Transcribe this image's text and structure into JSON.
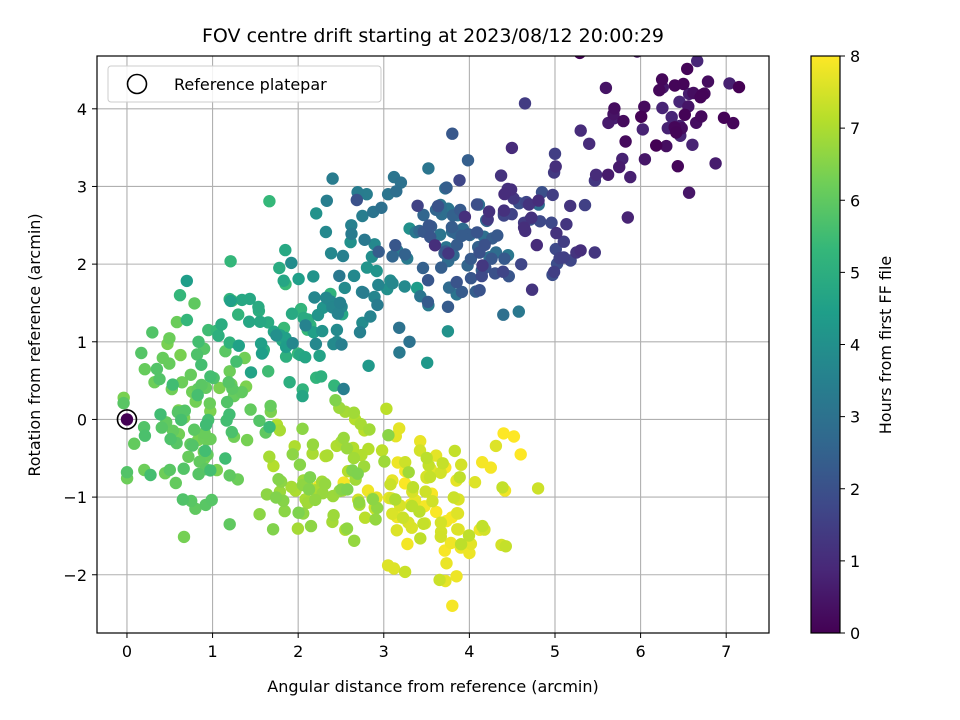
{
  "chart_data": {
    "type": "scatter",
    "title": "FOV centre drift starting at 2023/08/12 20:00:29",
    "xlabel": "Angular distance from reference (arcmin)",
    "ylabel": "Rotation from reference (arcmin)",
    "xlim": [
      -0.35,
      7.5
    ],
    "ylim": [
      -2.75,
      4.68
    ],
    "xticks": [
      0,
      1,
      2,
      3,
      4,
      5,
      6,
      7
    ],
    "yticks": [
      -2,
      -1,
      0,
      1,
      2,
      3,
      4
    ],
    "xtick_labels": [
      "0",
      "1",
      "2",
      "3",
      "4",
      "5",
      "6",
      "7"
    ],
    "ytick_labels": [
      "−2",
      "−1",
      "0",
      "1",
      "2",
      "3",
      "4"
    ],
    "grid": true,
    "legend": {
      "label": "Reference platepar",
      "placement": "upper-left"
    },
    "reference_point": {
      "x": 0,
      "y": 0
    },
    "colorbar": {
      "label": "Hours from first FF file",
      "min": 0,
      "max": 8,
      "ticks": [
        0,
        1,
        2,
        3,
        4,
        5,
        6,
        7,
        8
      ],
      "tick_labels": [
        "0",
        "1",
        "2",
        "3",
        "4",
        "5",
        "6",
        "7",
        "8"
      ],
      "colormap": "viridis",
      "colors": [
        "#440154",
        "#482878",
        "#3e4989",
        "#31688e",
        "#26828e",
        "#1f9e89",
        "#35b779",
        "#6ece58",
        "#b5de2b",
        "#fde725"
      ]
    },
    "clusters": [
      {
        "t": [
          0.0,
          0.9
        ],
        "cx": 6.2,
        "cy": 3.85,
        "sx": 0.4,
        "sy": 0.35,
        "n": 42
      },
      {
        "t": [
          0.9,
          2.0
        ],
        "cx": 4.7,
        "cy": 2.55,
        "sx": 0.45,
        "sy": 0.4,
        "n": 52
      },
      {
        "t": [
          2.0,
          3.2
        ],
        "cx": 3.9,
        "cy": 2.3,
        "sx": 0.4,
        "sy": 0.4,
        "n": 78
      },
      {
        "t": [
          3.2,
          4.4
        ],
        "cx": 2.7,
        "cy": 1.7,
        "sx": 0.45,
        "sy": 0.5,
        "n": 62
      },
      {
        "t": [
          4.4,
          5.5
        ],
        "cx": 1.7,
        "cy": 1.2,
        "sx": 0.45,
        "sy": 0.45,
        "n": 48
      },
      {
        "t": [
          5.5,
          6.4
        ],
        "cx": 0.75,
        "cy": 0.05,
        "sx": 0.35,
        "sy": 0.55,
        "n": 95
      },
      {
        "t": [
          6.4,
          7.1
        ],
        "cx": 2.3,
        "cy": -0.75,
        "sx": 0.4,
        "sy": 0.35,
        "n": 70
      },
      {
        "t": [
          7.1,
          8.0
        ],
        "cx": 3.5,
        "cy": -1.05,
        "sx": 0.45,
        "sy": 0.4,
        "n": 85
      }
    ],
    "points": [
      [
        7.15,
        4.28,
        0.0
      ],
      [
        6.5,
        4.32,
        0.1
      ],
      [
        6.4,
        4.3,
        0.1
      ],
      [
        6.72,
        4.18,
        0.1
      ],
      [
        6.7,
        4.15,
        0.1
      ],
      [
        6.48,
        3.75,
        0.3
      ],
      [
        6.65,
        3.82,
        0.3
      ],
      [
        6.3,
        3.52,
        0.3
      ],
      [
        6.05,
        3.35,
        0.5
      ],
      [
        5.85,
        2.6,
        0.8
      ],
      [
        5.88,
        3.12,
        0.7
      ],
      [
        5.75,
        3.25,
        0.6
      ],
      [
        5.62,
        3.15,
        0.6
      ],
      [
        5.3,
        3.72,
        1.0
      ],
      [
        4.65,
        4.07,
        1.4
      ],
      [
        3.8,
        3.68,
        2.2
      ],
      [
        5.48,
        3.15,
        1.0
      ],
      [
        5.4,
        3.55,
        1.0
      ],
      [
        5.0,
        3.42,
        1.5
      ],
      [
        5.25,
        2.15,
        1.2
      ],
      [
        4.99,
        1.9,
        1.5
      ],
      [
        4.3,
        1.88,
        2.0
      ],
      [
        3.75,
        1.45,
        2.3
      ],
      [
        3.3,
        1.0,
        3.0
      ],
      [
        3.18,
        1.18,
        3.0
      ],
      [
        3.2,
        3.05,
        3.0
      ],
      [
        3.05,
        2.9,
        3.1
      ],
      [
        3.12,
        3.12,
        3.1
      ],
      [
        2.75,
        2.62,
        3.4
      ],
      [
        2.8,
        2.9,
        3.4
      ],
      [
        2.05,
        0.3,
        4.7
      ],
      [
        2.25,
        0.82,
        4.6
      ],
      [
        1.9,
        0.48,
        5.0
      ],
      [
        1.78,
        1.95,
        4.9
      ],
      [
        1.85,
        2.18,
        4.8
      ],
      [
        0.62,
        1.6,
        5.3
      ],
      [
        0.7,
        1.28,
        5.3
      ],
      [
        0.95,
        1.15,
        5.5
      ],
      [
        1.2,
        1.55,
        5.2
      ],
      [
        1.3,
        1.35,
        5.2
      ],
      [
        0.0,
        -0.68,
        5.8
      ],
      [
        0.2,
        -0.1,
        5.8
      ],
      [
        0.5,
        -0.65,
        5.9
      ],
      [
        0.75,
        -1.05,
        5.9
      ],
      [
        0.92,
        -1.1,
        5.9
      ],
      [
        0.8,
        -1.15,
        6.0
      ],
      [
        1.2,
        -1.35,
        6.0
      ],
      [
        1.2,
        -0.72,
        6.0
      ],
      [
        1.25,
        0.3,
        6.1
      ],
      [
        1.55,
        -1.22,
        6.6
      ],
      [
        1.8,
        -0.8,
        6.6
      ],
      [
        2.4,
        -1.32,
        6.9
      ],
      [
        2.55,
        -1.42,
        7.0
      ],
      [
        2.9,
        -1.15,
        7.3
      ],
      [
        3.05,
        -1.88,
        7.6
      ],
      [
        3.12,
        -1.92,
        7.6
      ],
      [
        3.72,
        -2.08,
        7.7
      ],
      [
        3.8,
        -2.4,
        7.9
      ],
      [
        3.85,
        -2.02,
        7.8
      ],
      [
        3.9,
        -1.65,
        7.8
      ],
      [
        4.0,
        -1.72,
        7.8
      ],
      [
        4.15,
        -0.55,
        7.9
      ],
      [
        4.25,
        -0.62,
        7.9
      ],
      [
        4.4,
        -0.18,
        8.0
      ],
      [
        4.52,
        -0.22,
        8.0
      ],
      [
        4.6,
        -0.45,
        8.0
      ],
      [
        4.12,
        -1.42,
        7.8
      ],
      [
        3.5,
        -0.75,
        7.5
      ],
      [
        3.25,
        -0.55,
        7.4
      ],
      [
        2.98,
        -0.4,
        7.2
      ],
      [
        2.82,
        -0.38,
        7.1
      ],
      [
        2.55,
        0.1,
        6.9
      ],
      [
        2.48,
        0.15,
        6.8
      ],
      [
        2.05,
        -0.12,
        6.6
      ],
      [
        1.68,
        0.1,
        6.4
      ],
      [
        1.2,
        0.62,
        6.2
      ],
      [
        1.22,
        0.45,
        6.2
      ],
      [
        0.35,
        0.65,
        5.8
      ],
      [
        0.38,
        0.52,
        5.8
      ],
      [
        1.65,
        0.62,
        5.5
      ]
    ]
  }
}
